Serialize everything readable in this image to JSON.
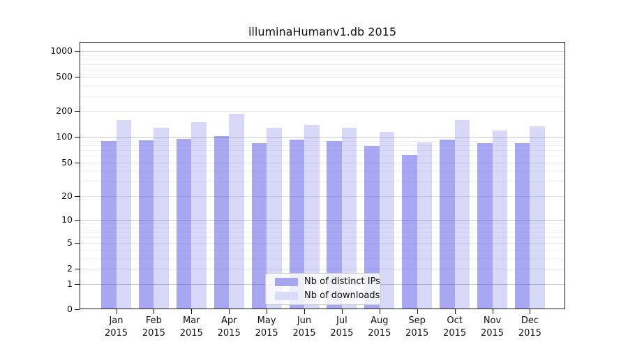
{
  "title": "illuminaHumanv1.db 2015",
  "legend": {
    "items": [
      {
        "label": "Nb of distinct IPs",
        "swatch": "#a6a6f1"
      },
      {
        "label": "Nb of downloads",
        "swatch": "#dadaf9"
      }
    ]
  },
  "chart_data": {
    "type": "bar",
    "title": "illuminaHumanv1.db 2015",
    "categories": [
      "Jan",
      "Feb",
      "Mar",
      "Apr",
      "May",
      "Jun",
      "Jul",
      "Aug",
      "Sep",
      "Oct",
      "Nov",
      "Dec"
    ],
    "year": "2015",
    "series": [
      {
        "name": "Nb of distinct IPs",
        "key": "distinct-ips",
        "fill": "rgba(70,70,228,0.47)",
        "values": [
          89,
          92,
          94,
          103,
          84,
          93,
          90,
          78,
          62,
          93,
          84,
          84
        ]
      },
      {
        "name": "Nb of downloads",
        "key": "downloads",
        "fill": "rgba(70,70,228,0.21)",
        "values": [
          157,
          127,
          149,
          186,
          127,
          137,
          128,
          114,
          86,
          157,
          118,
          133
        ]
      }
    ],
    "y_axis": {
      "scale": "log1p",
      "tick_values": [
        0,
        1,
        2,
        5,
        10,
        20,
        50,
        100,
        200,
        500,
        1000
      ],
      "tick_labels": [
        "0",
        "1",
        "2",
        "5",
        "10",
        "20",
        "50",
        "100",
        "200",
        "500",
        "1000"
      ],
      "ylim": [
        0,
        1400
      ]
    },
    "grid": true,
    "legend_position": "bottom-center",
    "colors": {
      "grid_major": "#c6c6ca",
      "grid_mid": "#e4e4e7",
      "grid_minor": "#f2f2f4",
      "axis": "#1a1a1a"
    }
  }
}
